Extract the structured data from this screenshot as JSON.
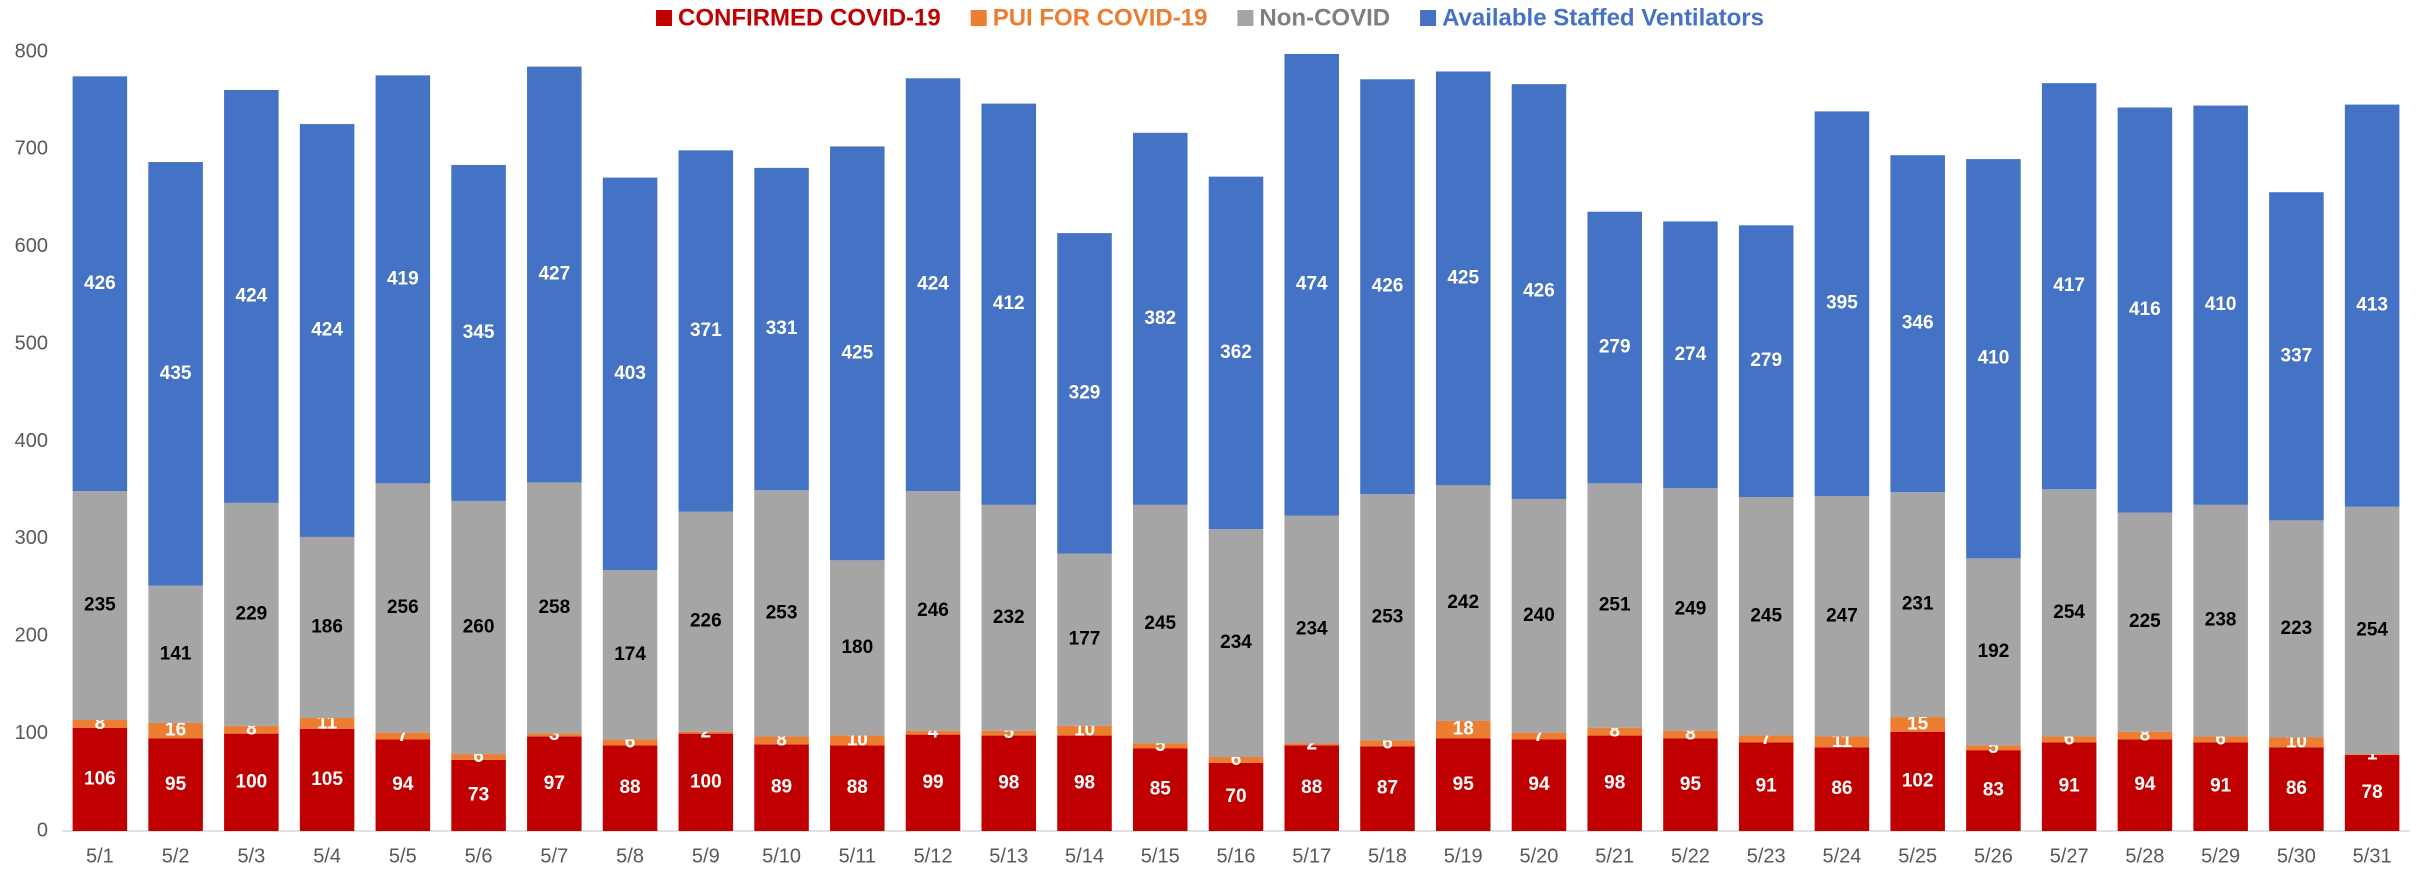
{
  "chart_data": {
    "type": "stacked_bar",
    "categories": [
      "5/1",
      "5/2",
      "5/3",
      "5/4",
      "5/5",
      "5/6",
      "5/7",
      "5/8",
      "5/9",
      "5/10",
      "5/11",
      "5/12",
      "5/13",
      "5/14",
      "5/15",
      "5/16",
      "5/17",
      "5/18",
      "5/19",
      "5/20",
      "5/21",
      "5/22",
      "5/23",
      "5/24",
      "5/25",
      "5/26",
      "5/27",
      "5/28",
      "5/29",
      "5/30",
      "5/31"
    ],
    "series": [
      {
        "name": "CONFIRMED COVID-19",
        "color": "#c00000",
        "values": [
          106,
          95,
          100,
          105,
          94,
          73,
          97,
          88,
          100,
          89,
          88,
          99,
          98,
          98,
          85,
          70,
          88,
          87,
          95,
          94,
          98,
          95,
          91,
          86,
          102,
          83,
          91,
          94,
          91,
          86,
          78
        ]
      },
      {
        "name": "PUI FOR COVID-19",
        "color": "#ed7d31",
        "values": [
          8,
          16,
          8,
          11,
          7,
          6,
          3,
          6,
          2,
          8,
          10,
          4,
          5,
          10,
          5,
          6,
          2,
          6,
          18,
          7,
          8,
          8,
          7,
          11,
          15,
          5,
          6,
          8,
          6,
          10,
          1
        ]
      },
      {
        "name": "Non-COVID",
        "color": "#a5a5a5",
        "values": [
          235,
          141,
          229,
          186,
          256,
          260,
          258,
          174,
          226,
          253,
          180,
          246,
          232,
          177,
          245,
          234,
          234,
          253,
          242,
          240,
          251,
          249,
          245,
          247,
          231,
          192,
          254,
          225,
          238,
          223,
          254
        ]
      },
      {
        "name": "Available Staffed Ventilators",
        "color": "#4472c4",
        "values": [
          426,
          435,
          424,
          424,
          419,
          345,
          427,
          403,
          371,
          331,
          425,
          424,
          412,
          329,
          382,
          362,
          474,
          426,
          425,
          426,
          279,
          274,
          279,
          395,
          346,
          410,
          417,
          416,
          410,
          337,
          413
        ]
      }
    ],
    "ylim": [
      0,
      800
    ],
    "yticks": [
      0,
      100,
      200,
      300,
      400,
      500,
      600,
      700,
      800
    ],
    "grid": false
  }
}
